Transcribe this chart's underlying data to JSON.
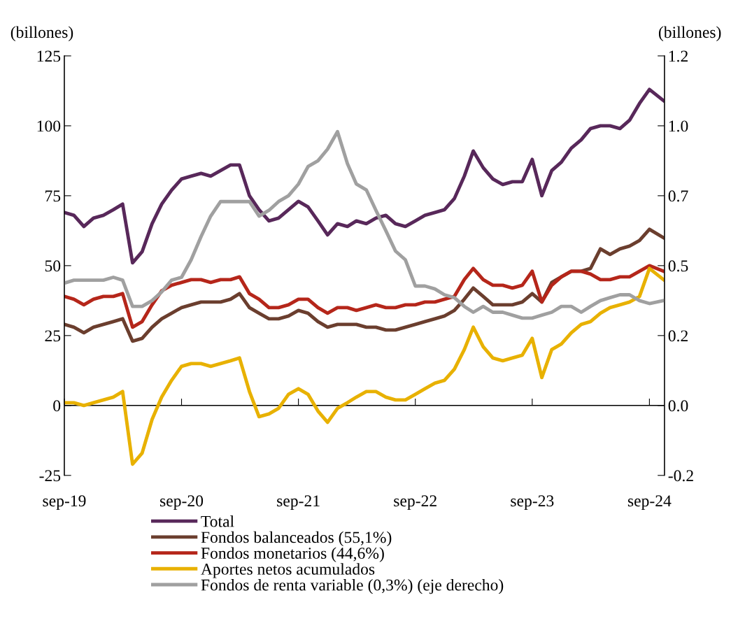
{
  "chart_data": {
    "type": "line",
    "ylabel": "(billones)",
    "y2label": "(billones)",
    "x": [
      "2019-09",
      "2019-10",
      "2019-11",
      "2019-12",
      "2020-01",
      "2020-02",
      "2020-03",
      "2020-04",
      "2020-05",
      "2020-06",
      "2020-07",
      "2020-08",
      "2020-09",
      "2020-10",
      "2020-11",
      "2020-12",
      "2021-01",
      "2021-02",
      "2021-03",
      "2021-04",
      "2021-05",
      "2021-06",
      "2021-07",
      "2021-08",
      "2021-09",
      "2021-10",
      "2021-11",
      "2021-12",
      "2022-01",
      "2022-02",
      "2022-03",
      "2022-04",
      "2022-05",
      "2022-06",
      "2022-07",
      "2022-08",
      "2022-09",
      "2022-10",
      "2022-11",
      "2022-12",
      "2023-01",
      "2023-02",
      "2023-03",
      "2023-04",
      "2023-05",
      "2023-06",
      "2023-07",
      "2023-08",
      "2023-09",
      "2023-10",
      "2023-11",
      "2023-12",
      "2024-01",
      "2024-02",
      "2024-03",
      "2024-04",
      "2024-05",
      "2024-06",
      "2024-07",
      "2024-08",
      "2024-09",
      "2024-10-15"
    ],
    "series": [
      {
        "name": "Total",
        "color": "#58285a",
        "values": [
          69,
          68,
          64,
          67,
          68,
          70,
          72,
          51,
          55,
          65,
          72,
          77,
          81,
          82,
          83,
          82,
          84,
          86,
          86,
          75,
          70,
          66,
          67,
          70,
          73,
          71,
          66,
          61,
          65,
          64,
          66,
          65,
          67,
          68,
          65,
          64,
          66,
          68,
          69,
          70,
          74,
          82,
          91,
          85,
          81,
          79,
          80,
          80,
          88,
          75,
          84,
          87,
          92,
          95,
          99,
          100,
          100,
          99,
          102,
          108,
          113,
          109
        ]
      },
      {
        "name": "Fondos balanceados (55,1%)",
        "color": "#6b3e2e",
        "values": [
          29,
          28,
          26,
          28,
          29,
          30,
          31,
          23,
          24,
          28,
          31,
          33,
          35,
          36,
          37,
          37,
          37,
          38,
          40,
          35,
          33,
          31,
          31,
          32,
          34,
          33,
          30,
          28,
          29,
          29,
          29,
          28,
          28,
          27,
          27,
          28,
          29,
          30,
          31,
          32,
          34,
          38,
          42,
          39,
          36,
          36,
          36,
          37,
          40,
          37,
          44,
          46,
          48,
          48,
          49,
          56,
          54,
          56,
          57,
          59,
          63,
          60
        ]
      },
      {
        "name": "Fondos monetarios (44,6%)",
        "color": "#b5261a",
        "values": [
          39,
          38,
          36,
          38,
          39,
          39,
          40,
          28,
          30,
          36,
          41,
          43,
          44,
          45,
          45,
          44,
          45,
          45,
          46,
          40,
          38,
          35,
          35,
          36,
          38,
          38,
          35,
          33,
          35,
          35,
          34,
          35,
          36,
          35,
          35,
          36,
          36,
          37,
          37,
          38,
          39,
          45,
          49,
          45,
          43,
          43,
          42,
          43,
          48,
          37,
          43,
          46,
          48,
          48,
          47,
          45,
          45,
          46,
          46,
          48,
          50,
          48
        ]
      },
      {
        "name": "Aportes netos acumulados",
        "color": "#e8b100",
        "values": [
          1,
          1,
          0,
          1,
          2,
          3,
          5,
          -21,
          -17,
          -5,
          3,
          9,
          14,
          15,
          15,
          14,
          15,
          16,
          17,
          5,
          -4,
          -3,
          -1,
          4,
          6,
          4,
          -2,
          -6,
          -1,
          1,
          3,
          5,
          5,
          3,
          2,
          2,
          4,
          6,
          8,
          9,
          13,
          20,
          28,
          21,
          17,
          16,
          17,
          18,
          24,
          10,
          20,
          22,
          26,
          29,
          30,
          33,
          35,
          36,
          37,
          39,
          49,
          45
        ]
      },
      {
        "name": "Fondos de renta variable (0,3%) (eje derecho)",
        "color": "#a0a0a0",
        "axis": "y2",
        "values": [
          0.42,
          0.43,
          0.43,
          0.43,
          0.43,
          0.44,
          0.43,
          0.34,
          0.34,
          0.36,
          0.39,
          0.43,
          0.44,
          0.5,
          0.58,
          0.65,
          0.7,
          0.7,
          0.7,
          0.7,
          0.65,
          0.67,
          0.7,
          0.72,
          0.76,
          0.82,
          0.84,
          0.88,
          0.94,
          0.83,
          0.76,
          0.74,
          0.67,
          0.6,
          0.53,
          0.5,
          0.41,
          0.41,
          0.4,
          0.38,
          0.37,
          0.34,
          0.32,
          0.34,
          0.32,
          0.32,
          0.31,
          0.3,
          0.3,
          0.31,
          0.32,
          0.34,
          0.34,
          0.32,
          0.34,
          0.36,
          0.37,
          0.38,
          0.38,
          0.36,
          0.35,
          0.36
        ]
      }
    ],
    "xlim": [
      "2019-09-01",
      "2024-10-18"
    ],
    "xticks": [
      {
        "value": "2019-09-01",
        "label": "sep-19"
      },
      {
        "value": "2020-09-01",
        "label": "sep-20"
      },
      {
        "value": "2021-09-01",
        "label": "sep-21"
      },
      {
        "value": "2022-09-01",
        "label": "sep-22"
      },
      {
        "value": "2023-09-01",
        "label": "sep-23"
      },
      {
        "value": "2024-09-01",
        "label": "sep-24"
      }
    ],
    "ylim": [
      -25,
      125
    ],
    "yticks": [
      -25,
      0,
      25,
      50,
      75,
      100,
      125
    ],
    "y2lim": [
      -0.24,
      1.2
    ],
    "y2ticks": [
      {
        "value": -0.24,
        "label": "-0.2"
      },
      {
        "value": 0,
        "label": "0.0"
      },
      {
        "value": 0.24,
        "label": "0.2"
      },
      {
        "value": 0.48,
        "label": "0.5"
      },
      {
        "value": 0.72,
        "label": "0.7"
      },
      {
        "value": 0.96,
        "label": "1.0"
      },
      {
        "value": 1.2,
        "label": "1.2"
      }
    ],
    "ref_lines": [
      {
        "axis": "y",
        "value": 0,
        "color": "#000000"
      }
    ],
    "legend": "bottom",
    "marker": "none",
    "line_style": "solid"
  }
}
